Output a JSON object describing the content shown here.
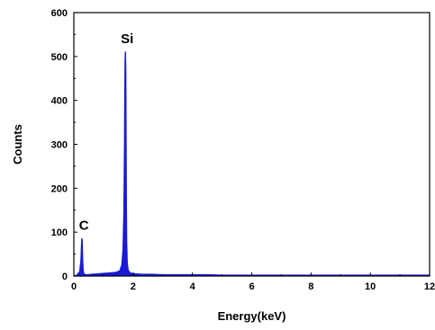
{
  "chart_data": {
    "type": "line",
    "title": "",
    "xlabel": "Energy(keV)",
    "ylabel": "Counts",
    "xlim": [
      0,
      12
    ],
    "ylim": [
      0,
      600
    ],
    "x_ticks": [
      0,
      2,
      4,
      6,
      8,
      10,
      12
    ],
    "y_ticks": [
      0,
      100,
      200,
      300,
      400,
      500,
      600
    ],
    "grid": false,
    "legend": "none",
    "colors": {
      "series": "#1a1ad6",
      "axis": "#000000"
    },
    "series": [
      {
        "x": [
          0.0,
          0.1,
          0.2,
          0.24,
          0.26,
          0.27,
          0.28,
          0.29,
          0.3,
          0.31,
          0.33,
          0.36,
          0.4,
          0.5,
          0.6,
          0.8,
          1.0,
          1.2,
          1.4,
          1.55,
          1.62,
          1.66,
          1.69,
          1.71,
          1.72,
          1.73,
          1.74,
          1.75,
          1.76,
          1.77,
          1.78,
          1.8,
          1.83,
          1.88,
          1.95,
          2.1,
          2.3,
          2.6,
          3.0,
          3.5,
          4.0,
          4.5,
          5.0,
          5.5,
          6.0,
          6.5,
          7.0,
          7.5,
          8.0,
          8.5,
          9.0,
          9.5,
          10.0,
          10.5,
          11.0,
          11.5,
          12.0
        ],
        "y": [
          0,
          2,
          10,
          35,
          70,
          85,
          80,
          55,
          30,
          15,
          6,
          4,
          3,
          3,
          4,
          5,
          6,
          7,
          8,
          12,
          25,
          60,
          150,
          300,
          420,
          490,
          510,
          470,
          330,
          170,
          80,
          30,
          14,
          8,
          6,
          5,
          4,
          4,
          3,
          3,
          3,
          3,
          2,
          2,
          2,
          2,
          2,
          2,
          2,
          2,
          2,
          2,
          2,
          2,
          2,
          2,
          2
        ]
      }
    ],
    "annotations": [
      {
        "text": "C",
        "x": 0.28,
        "y": 85
      },
      {
        "text": "Si",
        "x": 1.74,
        "y": 510
      }
    ]
  }
}
